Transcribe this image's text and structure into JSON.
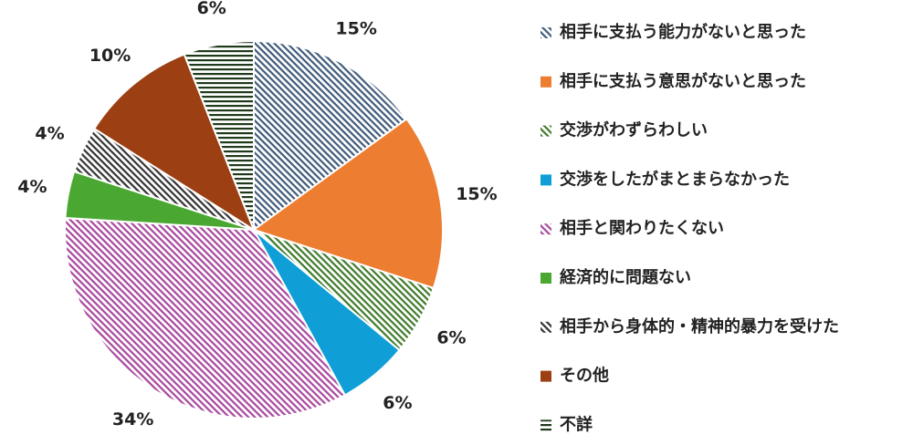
{
  "chart_data": {
    "type": "pie",
    "categories": [
      "相手に支払う能力がないと思った",
      "相手に支払う意思がないと思った",
      "交渉がわずらわしい",
      "交渉をしたがまとまらなかった",
      "相手と関わりたくない",
      "経済的に問題ない",
      "相手から身体的・精神的暴力を受けた",
      "その他",
      "不詳"
    ],
    "values": [
      15,
      15,
      6,
      6,
      34,
      4,
      4,
      10,
      6
    ],
    "value_labels": [
      "15%",
      "15%",
      "6%",
      "6%",
      "34%",
      "4%",
      "4%",
      "10%",
      "6%"
    ],
    "colors": [
      "#3f5a7a",
      "#ed7d31",
      "#3f7a2a",
      "#0f9fd6",
      "#a8479e",
      "#4aa832",
      "#333333",
      "#9c3f12",
      "#1f3a1a"
    ],
    "patterns": [
      "diagonal",
      "solid",
      "diagonal",
      "solid",
      "diagonal",
      "solid",
      "diagonal",
      "solid",
      "horizontal"
    ],
    "legend": "right"
  }
}
